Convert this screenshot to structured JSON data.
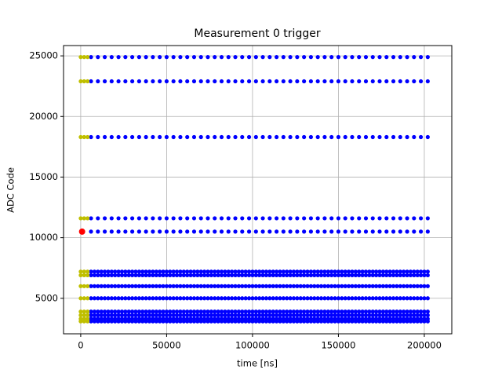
{
  "chart_data": {
    "type": "scatter",
    "title": "Measurement 0 trigger",
    "x_label": "time [ns]",
    "y_label": "ADC Code",
    "xlim": [
      -10000,
      216000
    ],
    "ylim": [
      2070,
      25850
    ],
    "xticks": [
      0,
      50000,
      100000,
      150000,
      200000
    ],
    "yticks": [
      5000,
      10000,
      15000,
      20000,
      25000
    ],
    "grid": true,
    "series": [
      {
        "color": "#0000ff",
        "levels": [
          24900,
          22900,
          18300,
          11600,
          10500
        ],
        "x": [
          6000,
          10000,
          14000,
          18000,
          22000,
          26000,
          30000,
          34000,
          38000,
          42000,
          46000,
          50000,
          54000,
          58000,
          62000,
          66000,
          70000,
          74000,
          78000,
          82000,
          86000,
          90000,
          94000,
          98000,
          102000,
          106000,
          110000,
          114000,
          118000,
          122000,
          126000,
          130000,
          134000,
          138000,
          142000,
          146000,
          150000,
          154000,
          158000,
          162000,
          166000,
          170000,
          174000,
          178000,
          182000,
          186000,
          190000,
          194000,
          198000,
          202000
        ]
      },
      {
        "color": "#0000ff",
        "levels": [
          7200,
          6900,
          6000,
          5000,
          3900,
          3600,
          3300,
          3100
        ],
        "x": [
          6000,
          8000,
          10000,
          12000,
          14000,
          16000,
          18000,
          20000,
          22000,
          24000,
          26000,
          28000,
          30000,
          32000,
          34000,
          36000,
          38000,
          40000,
          42000,
          44000,
          46000,
          48000,
          50000,
          52000,
          54000,
          56000,
          58000,
          60000,
          62000,
          64000,
          66000,
          68000,
          70000,
          72000,
          74000,
          76000,
          78000,
          80000,
          82000,
          84000,
          86000,
          88000,
          90000,
          92000,
          94000,
          96000,
          98000,
          100000,
          102000,
          104000,
          106000,
          108000,
          110000,
          112000,
          114000,
          116000,
          118000,
          120000,
          122000,
          124000,
          126000,
          128000,
          130000,
          132000,
          134000,
          136000,
          138000,
          140000,
          142000,
          144000,
          146000,
          148000,
          150000,
          152000,
          154000,
          156000,
          158000,
          160000,
          162000,
          164000,
          166000,
          168000,
          170000,
          172000,
          174000,
          176000,
          178000,
          180000,
          182000,
          184000,
          186000,
          188000,
          190000,
          192000,
          194000,
          196000,
          198000,
          200000,
          202000
        ]
      },
      {
        "color": "#bfbf00",
        "levels": [
          24900,
          22900,
          18300,
          11600,
          7200,
          6900,
          6000,
          5000,
          3900,
          3600,
          3300,
          3100
        ],
        "x": [
          0,
          2000,
          4000
        ]
      },
      {
        "color": "#ff0000",
        "highlight": true,
        "levels": [
          10500
        ],
        "x": [
          800
        ]
      }
    ]
  }
}
